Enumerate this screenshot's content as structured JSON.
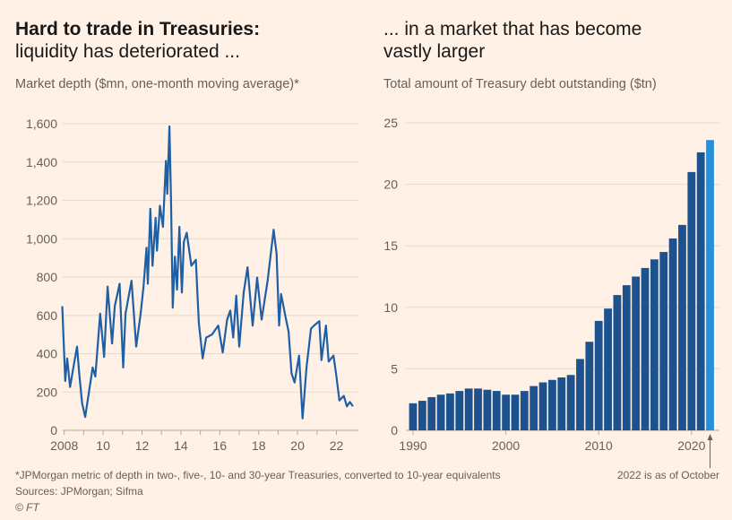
{
  "left": {
    "title_bold": "Hard to trade in Treasuries:",
    "title_rest": "liquidity has deteriorated ...",
    "subtitle": "Market depth ($mn, one-month moving average)*"
  },
  "right": {
    "title_line1": "... in a market that has become",
    "title_line2": "vastly larger",
    "subtitle": "Total amount of Treasury debt outstanding ($tn)"
  },
  "footer": {
    "note": "*JPMorgan metric of depth in two-, five-, 10- and 30-year Treasuries, converted to 10-year equivalents",
    "annotation": "2022 is as of October",
    "sources": "Sources: JPMorgan; Sifma",
    "credit": "© FT"
  },
  "colors": {
    "line": "#1f5fa6",
    "bar": "#1e528f",
    "bar_highlight": "#2b8fd6",
    "grid": "#e6d9ce",
    "axis": "#b3a89f"
  },
  "chart_data": [
    {
      "type": "line",
      "title": "Market depth ($mn, one-month moving average)*",
      "xlabel": "",
      "ylabel": "",
      "xlim": [
        2008,
        2023
      ],
      "ylim": [
        0,
        1600
      ],
      "yticks": [
        0,
        200,
        400,
        600,
        800,
        1000,
        1200,
        1400,
        1600
      ],
      "ytick_labels": [
        "0",
        "200",
        "400",
        "600",
        "800",
        "1,000",
        "1,200",
        "1,400",
        "1,600"
      ],
      "xticks": [
        2008,
        2010,
        2012,
        2014,
        2016,
        2018,
        2020,
        2022
      ],
      "xtick_labels": [
        "2008",
        "10",
        "12",
        "14",
        "16",
        "18",
        "20",
        "22"
      ],
      "series": [
        {
          "name": "Market depth",
          "x": [
            2007.9,
            2008.05,
            2008.15,
            2008.3,
            2008.5,
            2008.66,
            2008.77,
            2008.92,
            2009.08,
            2009.3,
            2009.46,
            2009.6,
            2009.85,
            2010.05,
            2010.23,
            2010.46,
            2010.6,
            2010.85,
            2011.03,
            2011.15,
            2011.46,
            2011.7,
            2011.92,
            2012.08,
            2012.23,
            2012.3,
            2012.43,
            2012.54,
            2012.7,
            2012.77,
            2012.92,
            2013.08,
            2013.23,
            2013.3,
            2013.41,
            2013.49,
            2013.58,
            2013.69,
            2013.8,
            2013.92,
            2014.05,
            2014.15,
            2014.3,
            2014.54,
            2014.77,
            2014.92,
            2015.12,
            2015.3,
            2015.6,
            2015.92,
            2016.15,
            2016.38,
            2016.54,
            2016.69,
            2016.85,
            2017.0,
            2017.23,
            2017.43,
            2017.69,
            2017.92,
            2018.15,
            2018.46,
            2018.77,
            2018.92,
            2019.05,
            2019.15,
            2019.38,
            2019.54,
            2019.69,
            2019.85,
            2020.08,
            2020.26,
            2020.46,
            2020.69,
            2020.85,
            2021.12,
            2021.23,
            2021.46,
            2021.6,
            2021.85,
            2022.0,
            2022.15,
            2022.38,
            2022.54,
            2022.69,
            2022.85
          ],
          "y": [
            648,
            258,
            375,
            226,
            344,
            437,
            297,
            140,
            70,
            219,
            328,
            281,
            609,
            383,
            750,
            453,
            648,
            765,
            328,
            609,
            781,
            437,
            601,
            750,
            953,
            765,
            1156,
            859,
            1109,
            937,
            1172,
            1062,
            1406,
            1234,
            1586,
            1219,
            640,
            906,
            734,
            1062,
            719,
            984,
            1031,
            859,
            890,
            562,
            375,
            484,
            500,
            547,
            406,
            578,
            625,
            484,
            703,
            437,
            719,
            851,
            547,
            797,
            578,
            781,
            1047,
            922,
            547,
            711,
            594,
            515,
            297,
            250,
            390,
            62,
            328,
            531,
            547,
            570,
            367,
            547,
            359,
            390,
            281,
            156,
            180,
            125,
            148,
            125
          ]
        }
      ]
    },
    {
      "type": "bar",
      "title": "Total amount of Treasury debt outstanding ($tn)",
      "xlabel": "",
      "ylabel": "",
      "ylim": [
        0,
        25
      ],
      "yticks": [
        0,
        5,
        10,
        15,
        20,
        25
      ],
      "xtick_labels": [
        "1990",
        "2000",
        "2010",
        "2020"
      ],
      "categories": [
        1990,
        1991,
        1992,
        1993,
        1994,
        1995,
        1996,
        1997,
        1998,
        1999,
        2000,
        2001,
        2002,
        2003,
        2004,
        2005,
        2006,
        2007,
        2008,
        2009,
        2010,
        2011,
        2012,
        2013,
        2014,
        2015,
        2016,
        2017,
        2018,
        2019,
        2020,
        2021,
        2022
      ],
      "values": [
        2.2,
        2.4,
        2.7,
        2.9,
        3.0,
        3.2,
        3.4,
        3.4,
        3.3,
        3.2,
        2.9,
        2.9,
        3.2,
        3.6,
        3.9,
        4.1,
        4.3,
        4.5,
        5.8,
        7.2,
        8.9,
        9.9,
        11.0,
        11.8,
        12.5,
        13.2,
        13.9,
        14.5,
        15.6,
        16.7,
        21.0,
        22.6,
        23.6
      ],
      "highlight": 2022
    }
  ]
}
